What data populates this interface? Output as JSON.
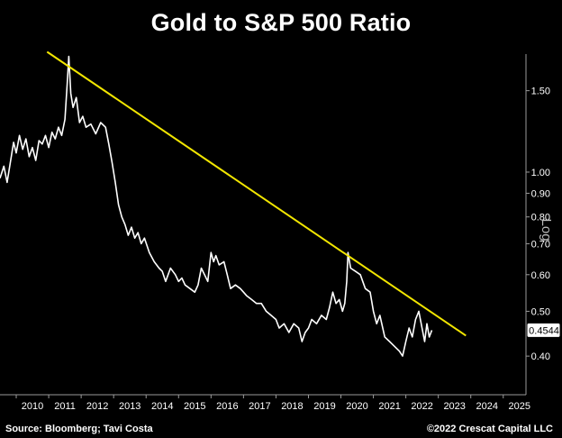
{
  "title": "Gold to S&P 500 Ratio",
  "footer": {
    "source": "Source: Bloomberg; Tavi Costa",
    "copyright": "©2022 Crescat Capital LLC"
  },
  "chart_data": {
    "type": "line",
    "title": "Gold to S&P 500 Ratio",
    "y_axis_label": "Log",
    "y_scale": "log",
    "y_axis_position": "right",
    "ylim": [
      0.33,
      1.8
    ],
    "xlim": [
      2009.5,
      2025.7
    ],
    "x_ticks": [
      "2010",
      "2011",
      "2012",
      "2013",
      "2014",
      "2015",
      "2016",
      "2017",
      "2018",
      "2019",
      "2020",
      "2021",
      "2022",
      "2023",
      "2024",
      "2025"
    ],
    "y_ticks": [
      "0.40",
      "0.50",
      "0.60",
      "0.70",
      "0.80",
      "0.90",
      "1.00",
      "1.50"
    ],
    "y_tick_values": [
      0.4,
      0.5,
      0.6,
      0.7,
      0.8,
      0.9,
      1.0,
      1.5
    ],
    "grid": false,
    "last_value_label": "0.4544",
    "series": [
      {
        "color": "#ffffff",
        "x": [
          2009.5,
          2009.62,
          2009.72,
          2009.82,
          2009.92,
          2010.0,
          2010.1,
          2010.2,
          2010.3,
          2010.4,
          2010.5,
          2010.6,
          2010.7,
          2010.8,
          2010.9,
          2011.0,
          2011.1,
          2011.2,
          2011.3,
          2011.4,
          2011.5,
          2011.57,
          2011.62,
          2011.68,
          2011.75,
          2011.85,
          2011.95,
          2012.05,
          2012.15,
          2012.3,
          2012.45,
          2012.6,
          2012.75,
          2012.85,
          2012.95,
          2013.05,
          2013.15,
          2013.25,
          2013.35,
          2013.45,
          2013.55,
          2013.65,
          2013.75,
          2013.85,
          2013.95,
          2014.1,
          2014.25,
          2014.4,
          2014.5,
          2014.6,
          2014.75,
          2014.9,
          2015.0,
          2015.1,
          2015.2,
          2015.35,
          2015.5,
          2015.6,
          2015.7,
          2015.8,
          2015.9,
          2016.0,
          2016.08,
          2016.15,
          2016.25,
          2016.4,
          2016.5,
          2016.6,
          2016.75,
          2016.9,
          2017.0,
          2017.1,
          2017.25,
          2017.4,
          2017.55,
          2017.7,
          2017.85,
          2018.0,
          2018.1,
          2018.25,
          2018.4,
          2018.55,
          2018.7,
          2018.8,
          2018.9,
          2019.0,
          2019.1,
          2019.25,
          2019.4,
          2019.55,
          2019.65,
          2019.75,
          2019.85,
          2019.95,
          2020.05,
          2020.12,
          2020.18,
          2020.22,
          2020.3,
          2020.45,
          2020.6,
          2020.75,
          2020.9,
          2021.0,
          2021.1,
          2021.2,
          2021.35,
          2021.5,
          2021.65,
          2021.8,
          2021.9,
          2022.0,
          2022.1,
          2022.2,
          2022.3,
          2022.4,
          2022.5,
          2022.58,
          2022.65,
          2022.72,
          2022.8
        ],
        "y": [
          0.97,
          1.03,
          0.95,
          1.05,
          1.16,
          1.1,
          1.2,
          1.12,
          1.18,
          1.08,
          1.13,
          1.06,
          1.17,
          1.15,
          1.2,
          1.13,
          1.22,
          1.18,
          1.25,
          1.2,
          1.3,
          1.55,
          1.78,
          1.48,
          1.38,
          1.45,
          1.28,
          1.32,
          1.25,
          1.27,
          1.21,
          1.28,
          1.25,
          1.15,
          1.05,
          0.95,
          0.85,
          0.8,
          0.77,
          0.73,
          0.76,
          0.72,
          0.74,
          0.7,
          0.72,
          0.67,
          0.64,
          0.62,
          0.61,
          0.58,
          0.62,
          0.6,
          0.58,
          0.59,
          0.57,
          0.56,
          0.55,
          0.57,
          0.62,
          0.6,
          0.58,
          0.67,
          0.64,
          0.66,
          0.63,
          0.64,
          0.6,
          0.56,
          0.57,
          0.56,
          0.55,
          0.54,
          0.53,
          0.52,
          0.52,
          0.5,
          0.49,
          0.48,
          0.46,
          0.47,
          0.45,
          0.47,
          0.46,
          0.43,
          0.45,
          0.46,
          0.48,
          0.47,
          0.49,
          0.48,
          0.51,
          0.55,
          0.52,
          0.53,
          0.5,
          0.52,
          0.58,
          0.67,
          0.62,
          0.61,
          0.6,
          0.56,
          0.55,
          0.5,
          0.47,
          0.49,
          0.44,
          0.43,
          0.42,
          0.41,
          0.4,
          0.43,
          0.46,
          0.44,
          0.48,
          0.5,
          0.46,
          0.43,
          0.47,
          0.44,
          0.455
        ]
      },
      {
        "color": "#f2e600",
        "x": [
          2010.95,
          2023.85
        ],
        "y": [
          1.82,
          0.443
        ]
      }
    ]
  }
}
